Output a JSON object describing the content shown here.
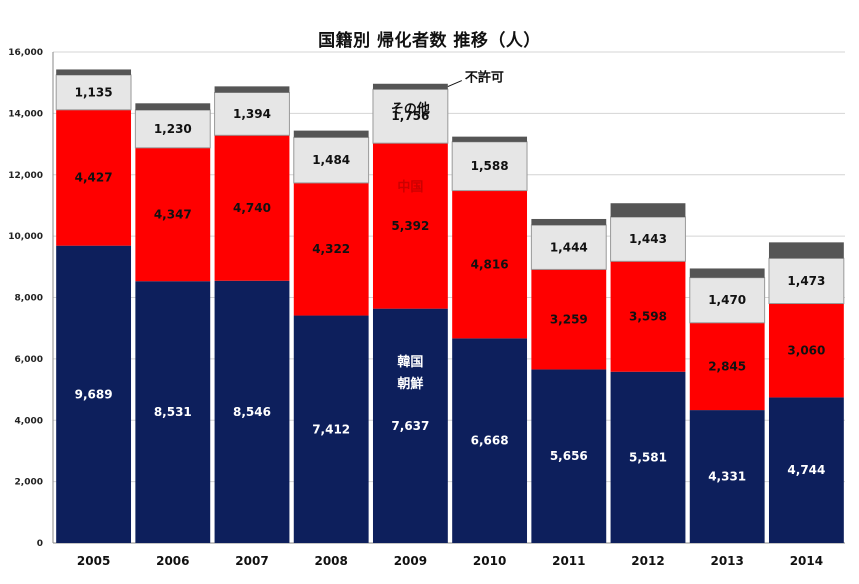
{
  "chart_data": {
    "type": "bar",
    "stacked": true,
    "title": "国籍別 帰化者数 推移（人）",
    "categories": [
      "2005",
      "2006",
      "2007",
      "2008",
      "2009",
      "2010",
      "2011",
      "2012",
      "2013",
      "2014"
    ],
    "ylim": [
      0,
      16000
    ],
    "yticks": [
      "0",
      "2,000",
      "4,000",
      "6,000",
      "8,000",
      "10,000",
      "12,000",
      "14,000",
      "16,000"
    ],
    "grid": true,
    "series": [
      {
        "key": "korea",
        "color": "#0d1f5c",
        "values": [
          9689,
          8531,
          8546,
          7412,
          7637,
          6668,
          5656,
          5581,
          4331,
          4744
        ],
        "labels": [
          "9,689",
          "8,531",
          "8,546",
          "7,412",
          "7,637",
          "6,668",
          "5,656",
          "5,581",
          "4,331",
          "4,744"
        ]
      },
      {
        "key": "china",
        "color": "#ff0000",
        "values": [
          4427,
          4347,
          4740,
          4322,
          5392,
          4816,
          3259,
          3598,
          2845,
          3060
        ],
        "labels": [
          "4,427",
          "4,347",
          "4,740",
          "4,322",
          "5,392",
          "4,816",
          "3,259",
          "3,598",
          "2,845",
          "3,060"
        ]
      },
      {
        "key": "other",
        "color": "#e6e6e6",
        "values": [
          1135,
          1230,
          1394,
          1484,
          1756,
          1588,
          1444,
          1443,
          1470,
          1473
        ],
        "labels": [
          "1,135",
          "1,230",
          "1,394",
          "1,484",
          "1,756",
          "1,588",
          "1,444",
          "1,443",
          "1,470",
          "1,473"
        ]
      },
      {
        "key": "denied",
        "color": "#555555",
        "values": [
          180,
          220,
          200,
          220,
          180,
          170,
          200,
          450,
          300,
          520
        ]
      }
    ],
    "annotations": [
      {
        "text": "韓国",
        "category": "2009",
        "series": "korea",
        "color": "#ffffff"
      },
      {
        "text": "朝鮮",
        "category": "2009",
        "series": "korea",
        "color": "#ffffff"
      },
      {
        "text": "中国",
        "category": "2009",
        "series": "china",
        "color": "#cc0000"
      },
      {
        "text": "その他",
        "category": "2009",
        "series": "other",
        "color": "#111111"
      },
      {
        "text": "不許可",
        "category": "2009",
        "series": "denied",
        "color": "#111111"
      }
    ]
  }
}
